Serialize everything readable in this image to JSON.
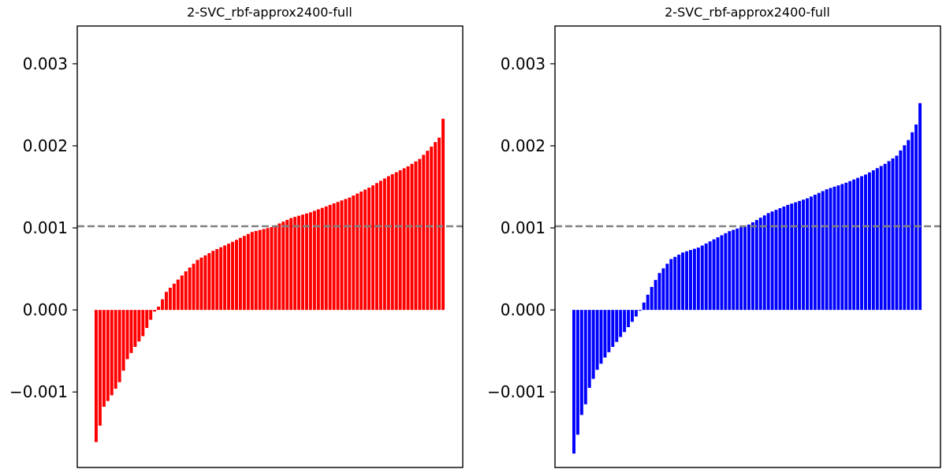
{
  "chart_data": [
    {
      "type": "bar",
      "title": "2-SVC_rbf-approx2400-full",
      "xlabel": "",
      "ylabel": "",
      "color": "#ff0000",
      "ylim": [
        -0.00192,
        0.00346
      ],
      "yticks": [
        -0.001,
        0.0,
        0.001,
        0.002,
        0.003
      ],
      "ytick_labels": [
        "−0.001",
        "0.000",
        "0.001",
        "0.002",
        "0.003"
      ],
      "reference_line": {
        "y": 0.00102,
        "style": "dashed",
        "color": "#808080"
      },
      "num_bars": 90,
      "sorted_ascending": true,
      "control_points": [
        [
          0,
          -0.00161
        ],
        [
          1,
          -0.00141
        ],
        [
          2,
          -0.00118
        ],
        [
          3,
          -0.00111
        ],
        [
          4,
          -0.00104
        ],
        [
          6,
          -0.00088
        ],
        [
          8,
          -0.0006
        ],
        [
          10,
          -0.00045
        ],
        [
          12,
          -0.00032
        ],
        [
          14,
          -0.00012
        ],
        [
          15,
          -2e-05
        ],
        [
          16,
          4e-05
        ],
        [
          18,
          0.00022
        ],
        [
          20,
          0.00032
        ],
        [
          23,
          0.00047
        ],
        [
          26,
          0.00061
        ],
        [
          30,
          0.00072
        ],
        [
          35,
          0.00083
        ],
        [
          40,
          0.00095
        ],
        [
          45,
          0.00101
        ],
        [
          50,
          0.00112
        ],
        [
          55,
          0.00119
        ],
        [
          60,
          0.00128
        ],
        [
          65,
          0.00137
        ],
        [
          70,
          0.00149
        ],
        [
          75,
          0.00163
        ],
        [
          80,
          0.00175
        ],
        [
          83,
          0.00184
        ],
        [
          86,
          0.00199
        ],
        [
          88,
          0.0021
        ],
        [
          89,
          0.00233
        ]
      ]
    },
    {
      "type": "bar",
      "title": "2-SVC_rbf-approx2400-full",
      "xlabel": "",
      "ylabel": "",
      "color": "#0000ff",
      "ylim": [
        -0.00192,
        0.00346
      ],
      "yticks": [
        -0.001,
        0.0,
        0.001,
        0.002,
        0.003
      ],
      "ytick_labels": [
        "−0.001",
        "0.000",
        "0.001",
        "0.002",
        "0.003"
      ],
      "reference_line": {
        "y": 0.00102,
        "style": "dashed",
        "color": "#808080"
      },
      "num_bars": 90,
      "sorted_ascending": true,
      "control_points": [
        [
          0,
          -0.00175
        ],
        [
          1,
          -0.00152
        ],
        [
          2,
          -0.00128
        ],
        [
          3,
          -0.00115
        ],
        [
          4,
          -0.00095
        ],
        [
          6,
          -0.00073
        ],
        [
          8,
          -0.00058
        ],
        [
          10,
          -0.00045
        ],
        [
          12,
          -0.00033
        ],
        [
          14,
          -0.00021
        ],
        [
          16,
          -8e-05
        ],
        [
          17,
          -1e-05
        ],
        [
          18,
          9e-05
        ],
        [
          20,
          0.00028
        ],
        [
          22,
          0.00045
        ],
        [
          25,
          0.00062
        ],
        [
          28,
          0.0007
        ],
        [
          32,
          0.00076
        ],
        [
          36,
          0.00086
        ],
        [
          40,
          0.00096
        ],
        [
          45,
          0.00104
        ],
        [
          50,
          0.00118
        ],
        [
          55,
          0.00128
        ],
        [
          60,
          0.00136
        ],
        [
          65,
          0.00147
        ],
        [
          70,
          0.00155
        ],
        [
          75,
          0.00165
        ],
        [
          80,
          0.00178
        ],
        [
          83,
          0.00188
        ],
        [
          86,
          0.00207
        ],
        [
          88,
          0.00226
        ],
        [
          89,
          0.00252
        ]
      ]
    }
  ]
}
